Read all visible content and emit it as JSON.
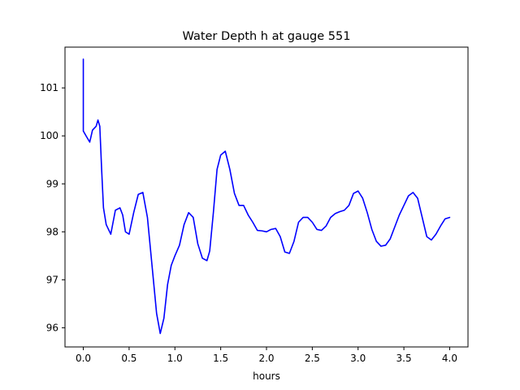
{
  "chart_data": {
    "type": "line",
    "title": "Water Depth h at gauge 551",
    "xlabel": "hours",
    "ylabel": "",
    "xlim": [
      -0.2,
      4.2
    ],
    "ylim": [
      95.6,
      101.85
    ],
    "grid": false,
    "xticks": [
      0.0,
      0.5,
      1.0,
      1.5,
      2.0,
      2.5,
      3.0,
      3.5,
      4.0
    ],
    "xtick_labels": [
      "0.0",
      "0.5",
      "1.0",
      "1.5",
      "2.0",
      "2.5",
      "3.0",
      "3.5",
      "4.0"
    ],
    "yticks": [
      96,
      97,
      98,
      99,
      100,
      101
    ],
    "ytick_labels": [
      "96",
      "97",
      "98",
      "99",
      "100",
      "101"
    ],
    "series": [
      {
        "color": "#0000ff",
        "x": [
          0.0,
          0.0,
          0.03,
          0.07,
          0.1,
          0.14,
          0.16,
          0.18,
          0.2,
          0.22,
          0.25,
          0.3,
          0.35,
          0.4,
          0.43,
          0.46,
          0.5,
          0.55,
          0.6,
          0.65,
          0.7,
          0.75,
          0.8,
          0.84,
          0.88,
          0.92,
          0.96,
          1.0,
          1.05,
          1.1,
          1.15,
          1.2,
          1.25,
          1.3,
          1.35,
          1.38,
          1.42,
          1.46,
          1.5,
          1.55,
          1.6,
          1.65,
          1.7,
          1.75,
          1.8,
          1.85,
          1.9,
          1.95,
          2.0,
          2.05,
          2.1,
          2.15,
          2.2,
          2.25,
          2.3,
          2.35,
          2.4,
          2.45,
          2.5,
          2.55,
          2.6,
          2.65,
          2.7,
          2.75,
          2.8,
          2.85,
          2.9,
          2.95,
          3.0,
          3.05,
          3.1,
          3.15,
          3.2,
          3.25,
          3.3,
          3.35,
          3.4,
          3.45,
          3.5,
          3.55,
          3.6,
          3.65,
          3.7,
          3.75,
          3.8,
          3.85,
          3.9,
          3.95,
          4.0
        ],
        "y": [
          101.6,
          100.1,
          100.0,
          99.87,
          100.12,
          100.2,
          100.33,
          100.2,
          99.3,
          98.5,
          98.15,
          97.95,
          98.45,
          98.5,
          98.35,
          98.0,
          97.95,
          98.4,
          98.78,
          98.82,
          98.3,
          97.3,
          96.3,
          95.88,
          96.2,
          96.9,
          97.3,
          97.5,
          97.72,
          98.15,
          98.4,
          98.3,
          97.75,
          97.45,
          97.4,
          97.6,
          98.4,
          99.3,
          99.6,
          99.68,
          99.3,
          98.8,
          98.55,
          98.55,
          98.35,
          98.2,
          98.03,
          98.02,
          98.0,
          98.05,
          98.07,
          97.9,
          97.58,
          97.55,
          97.8,
          98.2,
          98.3,
          98.3,
          98.2,
          98.05,
          98.03,
          98.12,
          98.3,
          98.38,
          98.42,
          98.45,
          98.55,
          98.8,
          98.85,
          98.7,
          98.4,
          98.05,
          97.8,
          97.7,
          97.72,
          97.85,
          98.1,
          98.35,
          98.55,
          98.75,
          98.82,
          98.7,
          98.3,
          97.9,
          97.83,
          97.95,
          98.12,
          98.27,
          98.3
        ]
      }
    ]
  }
}
